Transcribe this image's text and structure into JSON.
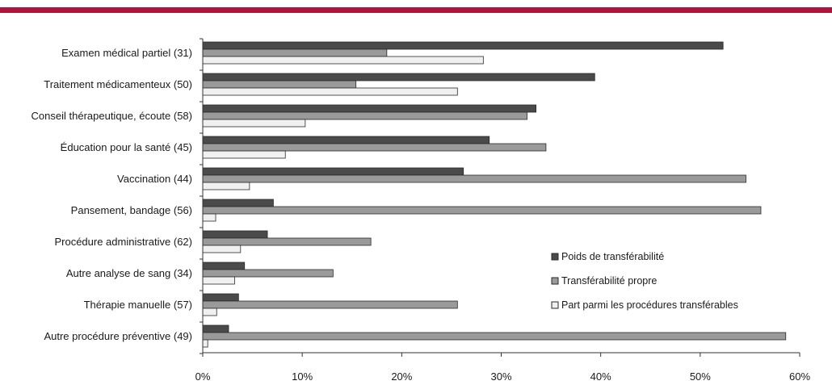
{
  "colors": {
    "header_rule": "#b0123a",
    "series": [
      "#4a4a4a",
      "#9a9a9a",
      "#f0f0f0"
    ],
    "bar_stroke": "#2a2a2a",
    "axis": "#333333"
  },
  "chart_data": {
    "type": "bar",
    "orientation": "horizontal",
    "title": "",
    "xlabel": "",
    "ylabel": "",
    "xlim": [
      0,
      60
    ],
    "xticks": [
      0,
      10,
      20,
      30,
      40,
      50,
      60
    ],
    "xtick_labels": [
      "0%",
      "10%",
      "20%",
      "30%",
      "40%",
      "50%",
      "60%"
    ],
    "grid": false,
    "legend_position": "bottom-right",
    "categories": [
      "Examen médical partiel (31)",
      "Traitement médicamenteux (50)",
      "Conseil thérapeutique, écoute (58)",
      "Éducation pour la santé (45)",
      "Vaccination (44)",
      "Pansement, bandage (56)",
      "Procédure administrative (62)",
      "Autre analyse de sang (34)",
      "Thérapie manuelle (57)",
      "Autre procédure préventive (49)"
    ],
    "series": [
      {
        "name": "Poids de transférabilité",
        "values": [
          52.3,
          39.4,
          33.5,
          28.8,
          26.2,
          7.1,
          6.5,
          4.2,
          3.6,
          2.6
        ]
      },
      {
        "name": "Transférabilité propre",
        "values": [
          18.5,
          15.4,
          32.6,
          34.5,
          54.6,
          56.1,
          16.9,
          13.1,
          25.6,
          58.6
        ]
      },
      {
        "name": "Part parmi les procédures transférables",
        "values": [
          28.2,
          25.6,
          10.3,
          8.3,
          4.7,
          1.3,
          3.8,
          3.2,
          1.4,
          0.5
        ]
      }
    ]
  }
}
